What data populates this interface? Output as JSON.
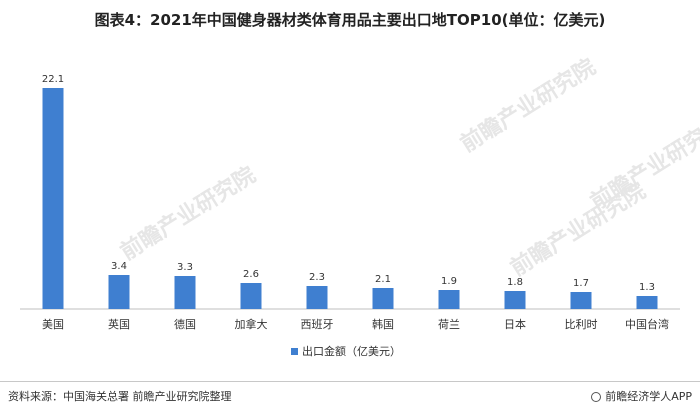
{
  "chart_data": {
    "type": "bar",
    "title": "图表4：2021年中国健身器材类体育用品主要出口地TOP10(单位：亿美元)",
    "categories": [
      "美国",
      "英国",
      "德国",
      "加拿大",
      "西班牙",
      "韩国",
      "荷兰",
      "日本",
      "比利时",
      "中国台湾"
    ],
    "series": [
      {
        "name": "出口金额（亿美元）",
        "values": [
          22.1,
          3.4,
          3.3,
          2.6,
          2.3,
          2.1,
          1.9,
          1.8,
          1.7,
          1.3
        ],
        "color": "#3f7fd0"
      }
    ],
    "value_labels": [
      "22.1",
      "3.4",
      "3.3",
      "2.6",
      "2.3",
      "2.1",
      "1.9",
      "1.8",
      "1.7",
      "1.3"
    ],
    "ylim": [
      0,
      22.1
    ],
    "grid": false,
    "legend_position": "bottom-left"
  },
  "watermark": "前瞻产业研究院",
  "footer": {
    "source": "资料来源：中国海关总署 前瞻产业研究院整理",
    "brand": "前瞻经济学人APP"
  }
}
